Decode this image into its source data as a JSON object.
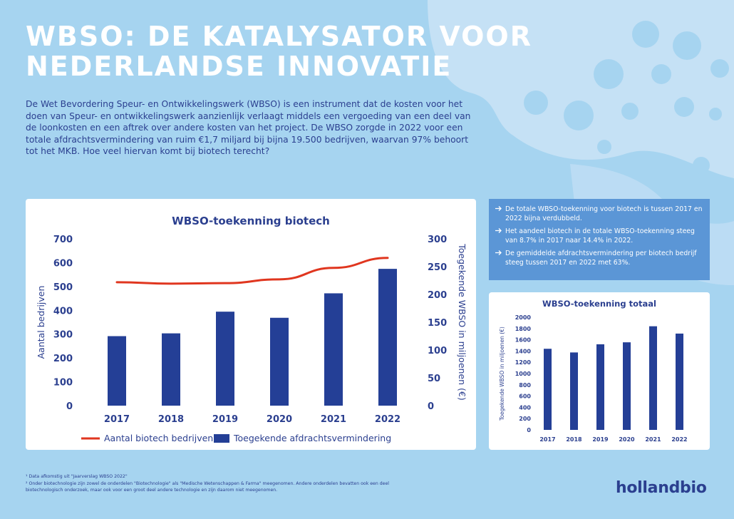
{
  "header": {
    "title_line1": "WBSO: DE KATALYSATOR VOOR",
    "title_line2": "NEDERLANDSE INNOVATIE",
    "intro": "De Wet Bevordering Speur- en Ontwikkelingswerk (WBSO) is een instrument dat de kosten voor het doen van Speur- en ontwikkelingswerk aanzienlijk verlaagt middels een vergoeding van een deel van de loonkosten en een aftrek over andere kosten van het project. De WBSO zorgde in 2022 voor een totale afdrachtsvermindering van ruim €1,7 miljard bij bijna 19.500 bedrijven, waarvan 97% behoort tot het MKB. Hoe veel hiervan komt bij biotech terecht?"
  },
  "facts": {
    "arrow_icon": "arrow-right-icon",
    "items": [
      "De totale WBSO-toekenning voor biotech is tussen 2017 en 2022 bijna verdubbeld.",
      "Het aandeel biotech in de totale WBSO-toekenning steeg van 8.7% in 2017 naar 14.4% in 2022.",
      "De gemiddelde afdrachtsvermindering per biotech bedrijf steeg tussen 2017 en 2022 met 63%."
    ]
  },
  "chart_data": [
    {
      "type": "bar",
      "title": "WBSO-toekenning biotech",
      "categories": [
        "2017",
        "2018",
        "2019",
        "2020",
        "2021",
        "2022"
      ],
      "xlabel": "",
      "ylabel": "Aantal bedrijven",
      "y2label": "Toegekende WBSO in miljoenen (€)",
      "ylim": [
        0,
        700
      ],
      "yticks": [
        "0",
        "100",
        "200",
        "300",
        "400",
        "500",
        "600",
        "700"
      ],
      "y2lim": [
        0,
        300
      ],
      "y2ticks": [
        "0",
        "50",
        "100",
        "150",
        "200",
        "250",
        "300"
      ],
      "grid": false,
      "legend_position": "bottom",
      "series": [
        {
          "name": "Aantal biotech bedrijven",
          "kind": "line",
          "axis": "left",
          "color": "#e0361f",
          "values": [
            518,
            512,
            514,
            530,
            578,
            620
          ]
        },
        {
          "name": "Toegekende afdrachtsvermindering",
          "kind": "bar",
          "axis": "right",
          "color": "#243f96",
          "values": [
            125,
            130,
            169,
            158,
            202,
            246
          ]
        }
      ]
    },
    {
      "type": "bar",
      "title": "WBSO-toekenning totaal",
      "categories": [
        "2017",
        "2018",
        "2019",
        "2020",
        "2021",
        "2022"
      ],
      "xlabel": "",
      "ylabel": "Toegekende WBSO in miljoenen (€)",
      "ylim": [
        0,
        2000
      ],
      "yticks": [
        "0",
        "200",
        "400",
        "600",
        "800",
        "1000",
        "1200",
        "1400",
        "1600",
        "1800",
        "2000"
      ],
      "grid": false,
      "series": [
        {
          "color": "#243f96",
          "values": [
            1440,
            1375,
            1520,
            1555,
            1840,
            1710
          ]
        }
      ]
    }
  ],
  "footnotes": [
    "¹ Data afkomstig uit \"Jaarverslag WBSO 2022\"",
    "² Onder biotechnologie zijn zowel de onderdelen \"Biotechnologie\" als \"Medische Wetenschappen & Farma\" meegenomen. Andere onderdelen bevatten ook een deel biotechnologisch onderzoek, maar ook voor een groot deel andere technologie en zijn daarom niet meegenomen."
  ],
  "brand": "hollandbio",
  "colors": {
    "background": "#a6d4f0",
    "navy": "#2b3f8f",
    "bar": "#243f96",
    "line": "#e0361f",
    "facts_box": "#5b96d6"
  }
}
